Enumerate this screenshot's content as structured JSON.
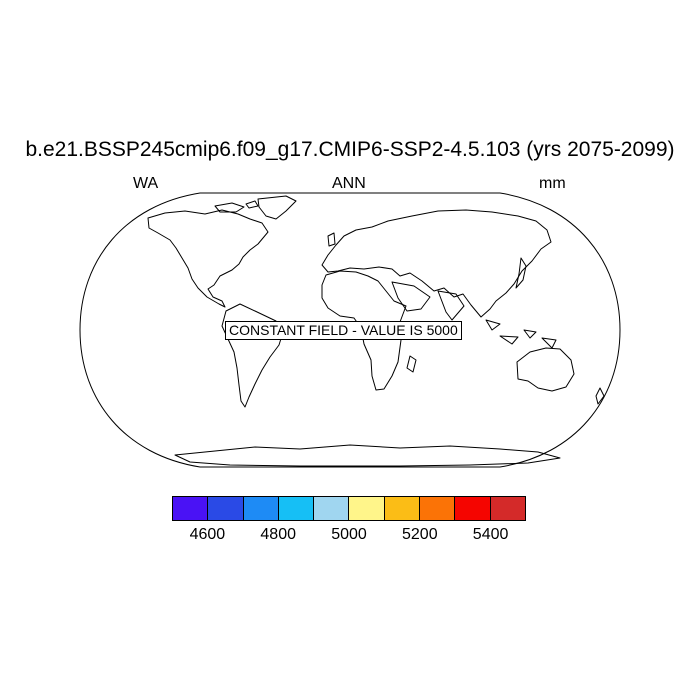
{
  "title": "b.e21.BSSP245cmip6.f09_g17.CMIP6-SSP2-4.5.103 (yrs 2075-2099)",
  "subtitle_left": "WA",
  "subtitle_center": "ANN",
  "subtitle_right": "mm",
  "annotation": "CONSTANT FIELD - VALUE IS 5000",
  "projection": "Robinson (global)",
  "colorbar": {
    "colors": [
      "#4a12f5",
      "#2a4ae6",
      "#1e8bf5",
      "#16bff5",
      "#a0d6f0",
      "#fff58a",
      "#fbbd16",
      "#fb7306",
      "#f50500",
      "#d42a29"
    ],
    "labels": [
      "4600",
      "4800",
      "5000",
      "5200",
      "5400"
    ]
  }
}
